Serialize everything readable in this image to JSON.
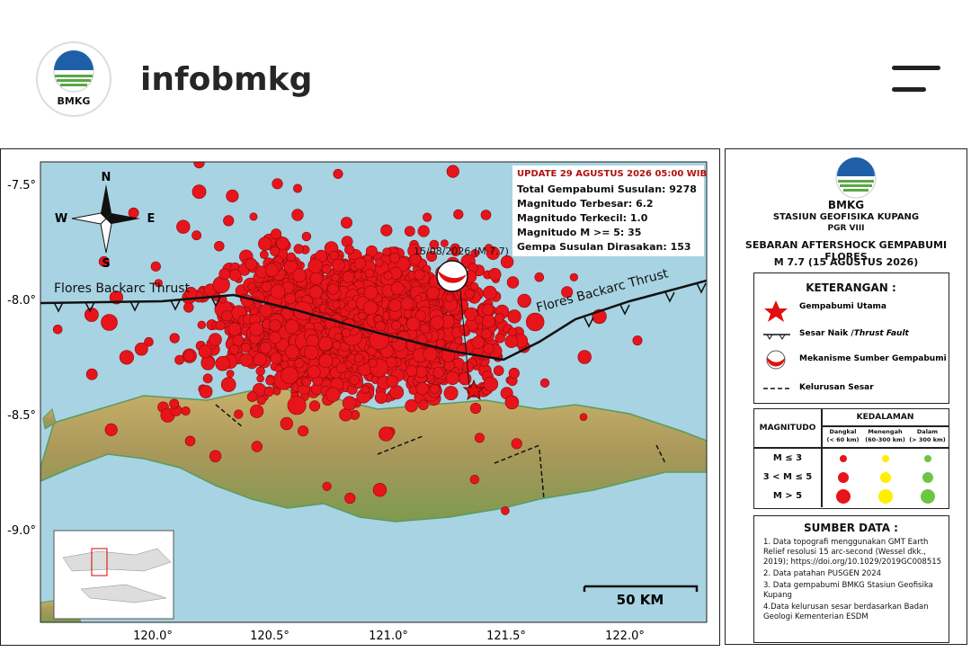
{
  "header": {
    "username": "infobmkg",
    "logo_text": "BMKG"
  },
  "map": {
    "lat_labels": [
      "-7.5°",
      "-8.0°",
      "-8.5°",
      "-9.0°"
    ],
    "lon_labels": [
      "120.0°",
      "120.5°",
      "121.0°",
      "121.5°",
      "122.0°"
    ],
    "compass": {
      "n": "N",
      "s": "S",
      "e": "E",
      "w": "W"
    },
    "fault_labels": [
      "Flores Backarc Thrust",
      "Flores Backarc Thrust"
    ],
    "event_label": "15/08/2026 (M 7.7)",
    "scale_label": "50 KM",
    "info": {
      "update": "UPDATE 29 AGUSTUS 2026 05:00 WIB",
      "lines": [
        "Total Gempabumi Susulan: 9278",
        "Magnitudo Terbesar: 6.2",
        "Magnitudo Terkecil: 1.0",
        "Magnitudo M >= 5: 35",
        "Gempa Susulan Dirasakan: 153"
      ]
    }
  },
  "panel": {
    "logo_text": "BMKG",
    "station": "STASIUN GEOFISIKA KUPANG",
    "region": "PGR VIII",
    "title": "SEBARAN AFTERSHOCK GEMPABUMI FLORES",
    "subtitle": "M 7.7 (15 AGUSTUS 2026)",
    "legend": {
      "title": "KETERANGAN :",
      "main_quake": "Gempabumi Utama",
      "thrust": "Sesar Naik /",
      "thrust_italic": "Thrust Fault",
      "mechanism": "Mekanisme Sumber Gempabumi",
      "lineament": "Kelurusan Sesar"
    },
    "magnitude_table": {
      "magnitude": "MAGNITUDO",
      "depth": "KEDALAMAN",
      "columns": [
        [
          "Dangkal",
          "(< 60 km)"
        ],
        [
          "Menengah",
          "(60-300 km)"
        ],
        [
          "Dalam",
          "(> 300 km)"
        ]
      ],
      "rows": [
        "M ≤ 3",
        "3 < M ≤ 5",
        "M > 5"
      ]
    },
    "sources": {
      "title": "SUMBER DATA :",
      "items": [
        "1. Data topografi menggunakan GMT Earth Relief resolusi 15 arc-second (Wessel dkk., 2019); https://doi.org/10.1029/2019GC008515",
        "2. Data patahan PUSGEN 2024",
        "3. Data gempabumi BMKG Stasiun Geofisika Kupang",
        "4.Data kelurusan sesar berdasarkan Badan Geologi Kementerian ESDM"
      ]
    }
  }
}
